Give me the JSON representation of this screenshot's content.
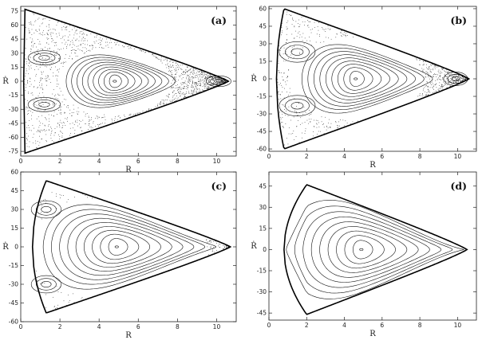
{
  "chart_data": [
    {
      "type": "scatter",
      "panel": "(a)",
      "xlabel": "R",
      "ylabel": "Ṙ",
      "xlim": [
        0,
        11
      ],
      "ylim": [
        -80,
        80
      ],
      "xticks": [
        "0",
        "2",
        "4",
        "6",
        "8",
        "10"
      ],
      "yticks": [
        "75",
        "60",
        "45",
        "30",
        "15",
        "0",
        "-15",
        "-30",
        "-45",
        "-60",
        "-75"
      ],
      "boundary": {
        "r_left": 0.15,
        "r_right": 10.6,
        "rdot_max": 77,
        "peak_r": 0.2
      },
      "center": {
        "r": 4.8,
        "rdot": 0
      },
      "regular_region_fraction": 0.55,
      "islands": [
        {
          "r": 1.2,
          "rdot": 25,
          "size": 0.6
        },
        {
          "r": 1.2,
          "rdot": -25,
          "size": 0.6
        },
        {
          "r": 10.1,
          "rdot": 0,
          "size": 0.3
        }
      ],
      "grid": false
    },
    {
      "type": "scatter",
      "panel": "(b)",
      "xlabel": "R",
      "ylabel": "Ṙ",
      "xlim": [
        0,
        11
      ],
      "ylim": [
        -62,
        62
      ],
      "xticks": [
        "0",
        "2",
        "4",
        "6",
        "8",
        "10"
      ],
      "yticks": [
        "60",
        "45",
        "30",
        "15",
        "0",
        "-15",
        "-30",
        "-45",
        "-60"
      ],
      "boundary": {
        "r_left": 0.4,
        "r_right": 10.6,
        "rdot_max": 60,
        "peak_r": 0.8
      },
      "center": {
        "r": 4.6,
        "rdot": 0
      },
      "regular_region_fraction": 0.7,
      "islands": [
        {
          "r": 1.5,
          "rdot": 23,
          "size": 0.8
        },
        {
          "r": 1.5,
          "rdot": -23,
          "size": 0.8
        },
        {
          "r": 9.9,
          "rdot": 0,
          "size": 0.3
        }
      ],
      "grid": false
    },
    {
      "type": "scatter",
      "panel": "(c)",
      "xlabel": "R",
      "ylabel": "Ṙ",
      "xlim": [
        0,
        11
      ],
      "ylim": [
        -60,
        60
      ],
      "xticks": [
        "0",
        "2",
        "4",
        "6",
        "8",
        "10"
      ],
      "yticks": [
        "60",
        "45",
        "30",
        "15",
        "0",
        "-15",
        "-30",
        "-45",
        "-60"
      ],
      "boundary": {
        "r_left": 0.6,
        "r_right": 10.7,
        "rdot_max": 53,
        "peak_r": 1.3
      },
      "center": {
        "r": 4.9,
        "rdot": 0
      },
      "regular_region_fraction": 0.9,
      "islands": [
        {
          "r": 1.3,
          "rdot": 30,
          "size": 0.5
        },
        {
          "r": 1.3,
          "rdot": -30,
          "size": 0.5
        }
      ],
      "grid": false
    },
    {
      "type": "scatter",
      "panel": "(d)",
      "xlabel": "R",
      "ylabel": "Ṙ",
      "xlim": [
        0,
        11
      ],
      "ylim": [
        -50,
        55
      ],
      "xticks": [
        "0",
        "2",
        "4",
        "6",
        "8",
        "10"
      ],
      "yticks": [
        "45",
        "30",
        "15",
        "0",
        "-15",
        "-30",
        "-45"
      ],
      "boundary": {
        "r_left": 0.8,
        "r_right": 10.5,
        "rdot_max": 46,
        "peak_r": 2.0
      },
      "center": {
        "r": 4.9,
        "rdot": 0
      },
      "regular_region_fraction": 1.0,
      "islands": [],
      "grid": false
    }
  ]
}
